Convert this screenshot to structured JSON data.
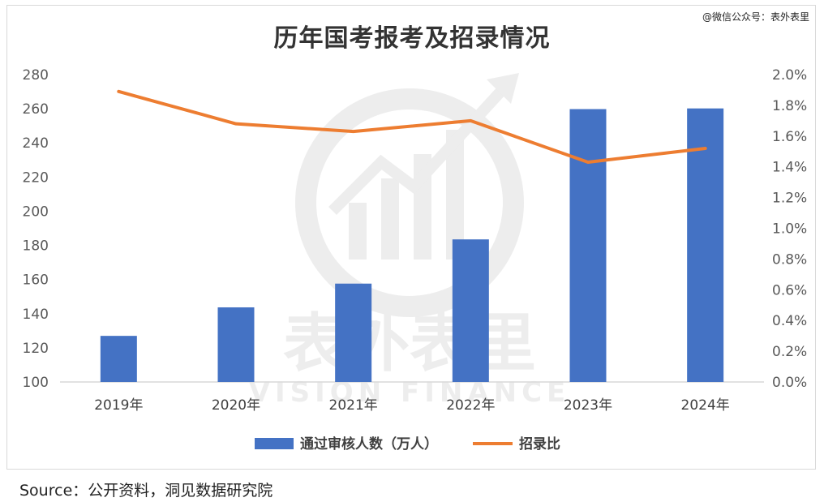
{
  "header": {
    "title": "历年国考报考及招录情况",
    "credit": "@微信公众号：表外表里"
  },
  "footer": {
    "source": "Source：公开资料，洞见数据研究院"
  },
  "watermark": {
    "line1": "表外表里",
    "line2": "VISION FINANCE"
  },
  "chart_data": {
    "type": "bar",
    "title": "历年国考报考及招录情况",
    "categories": [
      "2019年",
      "2020年",
      "2021年",
      "2022年",
      "2023年",
      "2024年"
    ],
    "series": [
      {
        "name": "通过审核人数（万人）",
        "type": "bar",
        "axis": "left",
        "color": "#4472C4",
        "values": [
          127,
          143.7,
          157.6,
          183.5,
          259.8,
          260.2
        ]
      },
      {
        "name": "招录比",
        "type": "line",
        "axis": "right",
        "color": "#ED7D31",
        "values": [
          1.89,
          1.68,
          1.63,
          1.7,
          1.43,
          1.52
        ]
      }
    ],
    "y_left": {
      "min": 100,
      "max": 280,
      "step": 20,
      "ticks": [
        "100",
        "120",
        "140",
        "160",
        "180",
        "200",
        "220",
        "240",
        "260",
        "280"
      ]
    },
    "y_right": {
      "min": 0,
      "max": 2.0,
      "step": 0.2,
      "ticks": [
        "0.0%",
        "0.2%",
        "0.4%",
        "0.6%",
        "0.8%",
        "1.0%",
        "1.2%",
        "1.4%",
        "1.6%",
        "1.8%",
        "2.0%"
      ]
    },
    "grid": false,
    "legend_position": "bottom"
  }
}
